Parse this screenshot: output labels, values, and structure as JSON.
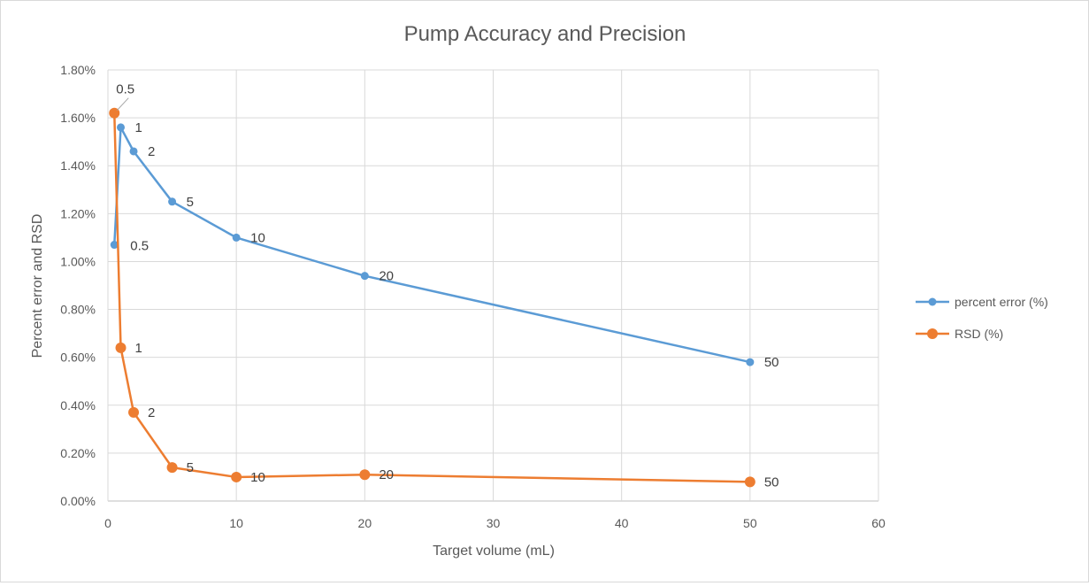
{
  "chart_data": {
    "type": "scatter",
    "title": "Pump Accuracy and Precision",
    "xlabel": "Target volume (mL)",
    "ylabel": "Percent error and RSD",
    "xlim": [
      0,
      60
    ],
    "ylim": [
      0,
      0.018
    ],
    "x_ticks": [
      0,
      10,
      20,
      30,
      40,
      50,
      60
    ],
    "y_ticks": [
      0,
      0.002,
      0.004,
      0.006,
      0.008,
      0.01,
      0.012,
      0.014,
      0.016,
      0.018
    ],
    "y_tick_labels": [
      "0.00%",
      "0.20%",
      "0.40%",
      "0.60%",
      "0.80%",
      "1.00%",
      "1.20%",
      "1.40%",
      "1.60%",
      "1.80%"
    ],
    "x_tick_labels": [
      "0",
      "10",
      "20",
      "30",
      "40",
      "50",
      "60"
    ],
    "grid": true,
    "legend_position": "right",
    "series": [
      {
        "name": "percent error (%)",
        "color": "#5b9bd5",
        "x": [
          0.5,
          1,
          2,
          5,
          10,
          20,
          50
        ],
        "y": [
          0.0107,
          0.0156,
          0.0146,
          0.0125,
          0.011,
          0.0094,
          0.0058
        ],
        "labels": [
          "0.5",
          "1",
          "2",
          "5",
          "10",
          "20",
          "50"
        ]
      },
      {
        "name": "RSD (%)",
        "color": "#ed7d31",
        "x": [
          0.5,
          1,
          2,
          5,
          10,
          20,
          50
        ],
        "y": [
          0.0162,
          0.0064,
          0.0037,
          0.0014,
          0.001,
          0.0011,
          0.0008
        ],
        "labels": [
          "0.5",
          "1",
          "2",
          "5",
          "10",
          "20",
          "50"
        ]
      }
    ]
  }
}
